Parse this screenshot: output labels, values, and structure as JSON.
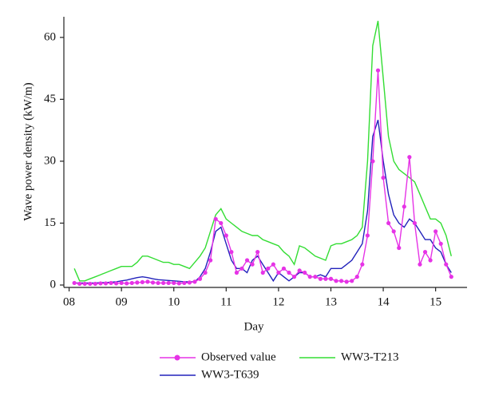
{
  "chart_data": {
    "type": "line",
    "xlabel": "Day",
    "ylabel": "Wave power density (kW/m)",
    "x": [
      8.1,
      8.2,
      8.3,
      8.4,
      8.5,
      8.6,
      8.7,
      8.8,
      8.9,
      9.0,
      9.1,
      9.2,
      9.3,
      9.4,
      9.5,
      9.6,
      9.7,
      9.8,
      9.9,
      10.0,
      10.1,
      10.2,
      10.3,
      10.4,
      10.5,
      10.6,
      10.7,
      10.8,
      10.9,
      11.0,
      11.1,
      11.2,
      11.3,
      11.4,
      11.5,
      11.6,
      11.7,
      11.8,
      11.9,
      12.0,
      12.1,
      12.2,
      12.3,
      12.4,
      12.5,
      12.6,
      12.7,
      12.8,
      12.9,
      13.0,
      13.1,
      13.2,
      13.3,
      13.4,
      13.5,
      13.6,
      13.7,
      13.8,
      13.9,
      14.0,
      14.1,
      14.2,
      14.3,
      14.4,
      14.5,
      14.6,
      14.7,
      14.8,
      14.9,
      15.0,
      15.1,
      15.2,
      15.3
    ],
    "series": [
      {
        "name": "Observed value",
        "color": "#e633e6",
        "markers": true,
        "values": [
          0.5,
          0.3,
          0.3,
          0.3,
          0.3,
          0.4,
          0.4,
          0.5,
          0.4,
          0.5,
          0.4,
          0.5,
          0.6,
          0.7,
          0.8,
          0.6,
          0.5,
          0.5,
          0.5,
          0.5,
          0.4,
          0.5,
          0.6,
          0.8,
          1.5,
          3,
          6,
          16,
          15,
          12,
          8,
          3,
          4,
          6,
          5,
          8,
          3,
          4,
          5,
          3,
          4,
          3,
          2,
          3.5,
          3,
          2,
          2,
          1.5,
          1.5,
          1.5,
          1,
          1,
          0.8,
          1,
          2,
          5,
          12,
          30,
          52,
          26,
          15,
          13,
          9,
          19,
          31,
          15,
          5,
          8,
          6,
          13,
          10,
          5,
          2
        ]
      },
      {
        "name": "WW3-T213",
        "color": "#33dd33",
        "markers": false,
        "values": [
          4,
          1,
          1,
          1.5,
          2,
          2.5,
          3,
          3.5,
          4,
          4.5,
          4.5,
          4.5,
          5.5,
          7,
          7,
          6.5,
          6,
          5.5,
          5.5,
          5,
          5,
          4.5,
          4,
          5.5,
          7,
          9,
          13,
          17,
          18.5,
          16,
          15,
          14,
          13,
          12.5,
          12,
          12,
          11,
          10.5,
          10,
          9.5,
          8,
          7,
          5,
          9.5,
          9,
          8,
          7,
          6.5,
          6,
          9.5,
          10,
          10,
          10.5,
          11,
          12,
          14,
          30,
          58,
          64,
          50,
          36,
          30,
          28,
          27,
          26,
          25,
          22,
          19,
          16,
          16,
          15,
          12,
          7
        ]
      },
      {
        "name": "WW3-T639",
        "color": "#2222bb",
        "markers": false,
        "values": [
          0.5,
          0.5,
          0.5,
          0.5,
          0.5,
          0.6,
          0.6,
          0.7,
          0.8,
          1,
          1.2,
          1.5,
          1.8,
          2,
          1.8,
          1.5,
          1.3,
          1.2,
          1.1,
          1,
          0.9,
          0.8,
          0.8,
          0.8,
          2,
          4,
          8,
          13,
          14,
          10,
          6,
          4,
          4,
          3,
          6,
          7,
          5,
          3,
          1,
          3,
          2,
          1,
          2,
          3,
          3,
          2,
          2,
          2.5,
          2,
          4,
          4,
          4,
          5,
          6,
          8,
          10,
          18,
          36,
          40,
          30,
          22,
          17,
          15,
          14,
          16,
          15,
          13,
          11,
          11,
          9,
          8,
          5,
          3
        ]
      }
    ],
    "xlim": [
      7.9,
      15.6
    ],
    "xticks": [
      {
        "value": 8,
        "label": "08"
      },
      {
        "value": 9,
        "label": "09"
      },
      10,
      11,
      12,
      13,
      14,
      15
    ],
    "ylim": [
      0,
      65
    ],
    "yticks": [
      0,
      15,
      30,
      45,
      60
    ],
    "legend": "bottom",
    "grid": false
  }
}
